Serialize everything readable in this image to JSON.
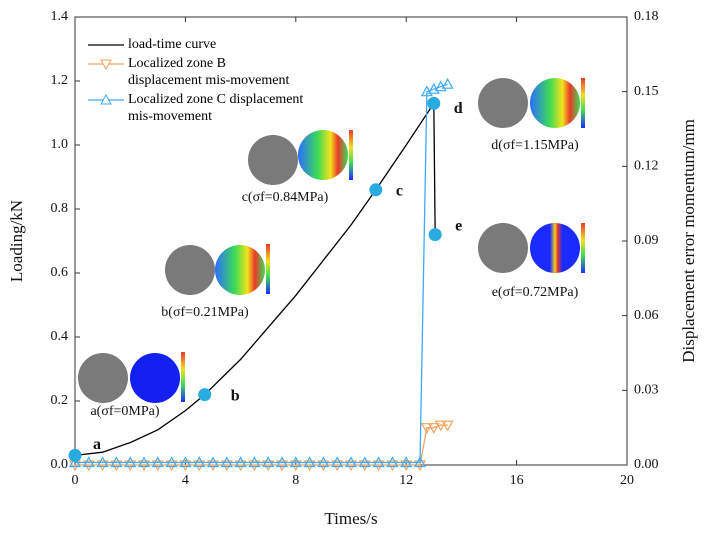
{
  "chart_data": {
    "type": "line",
    "xlabel": "Times/s",
    "ylabel": "Loading/kN",
    "y2label": "Displacement error momentum/mm",
    "xlim": [
      0,
      20
    ],
    "xticks": [
      0,
      4,
      8,
      12,
      16,
      20
    ],
    "ylim": [
      0,
      1.4
    ],
    "yticks": [
      {
        "value": 0,
        "label": "0.0"
      },
      0.2,
      0.4,
      0.6,
      0.8,
      {
        "value": 1,
        "label": "1.0"
      },
      1.2,
      1.4
    ],
    "y2lim": [
      0,
      0.18
    ],
    "y2ticks": [
      {
        "value": 0,
        "label": "0.00"
      },
      0.03,
      0.06,
      0.09,
      0.12,
      0.15,
      0.18
    ],
    "legend": "upper left",
    "series": [
      {
        "name": "load-time curve",
        "color": "#000000",
        "marker": "none",
        "axis": "y",
        "x": [
          0,
          1,
          2,
          3,
          4,
          4.7,
          6,
          8,
          10,
          10.9,
          12,
          13,
          13.05
        ],
        "values": [
          0.03,
          0.04,
          0.07,
          0.11,
          0.17,
          0.22,
          0.33,
          0.53,
          0.75,
          0.86,
          1.0,
          1.13,
          0.72
        ]
      },
      {
        "name": "Localized zone B\ndisplacement mis-movement",
        "color": "#f4a460",
        "marker": "triangle-down",
        "axis": "y2",
        "x": [
          0,
          0.5,
          1,
          1.5,
          2,
          2.5,
          3,
          3.5,
          4,
          4.5,
          5,
          5.5,
          6,
          6.5,
          7,
          7.5,
          8,
          8.5,
          9,
          9.5,
          10,
          10.5,
          11,
          11.5,
          12,
          12.5,
          12.75,
          13,
          13.25,
          13.5
        ],
        "values": [
          0,
          0,
          0,
          0,
          0,
          0,
          0,
          0,
          0,
          0,
          0,
          0,
          0,
          0,
          0,
          0,
          0,
          0,
          0,
          0,
          0,
          0,
          0,
          0,
          0,
          0,
          0.015,
          0.015,
          0.016,
          0.016
        ]
      },
      {
        "name": "Localized zone C displacement\nmis-movement",
        "color": "#3fa9f5",
        "marker": "triangle-up",
        "axis": "y2",
        "x": [
          0,
          0.5,
          1,
          1.5,
          2,
          2.5,
          3,
          3.5,
          4,
          4.5,
          5,
          5.5,
          6,
          6.5,
          7,
          7.5,
          8,
          8.5,
          9,
          9.5,
          10,
          10.5,
          11,
          11.5,
          12,
          12.5,
          12.75,
          13,
          13.25,
          13.5
        ],
        "values": [
          0.001,
          0.001,
          0.001,
          0.001,
          0.001,
          0.001,
          0.001,
          0.001,
          0.001,
          0.001,
          0.001,
          0.001,
          0.001,
          0.001,
          0.001,
          0.001,
          0.001,
          0.001,
          0.001,
          0.001,
          0.001,
          0.001,
          0.001,
          0.001,
          0.001,
          0.001,
          0.15,
          0.151,
          0.152,
          0.153
        ]
      }
    ],
    "key_points": {
      "color": "#29abe2",
      "x": [
        0,
        4.7,
        10.9,
        13,
        13.05
      ],
      "values": [
        0.03,
        0.22,
        0.86,
        1.13,
        0.72
      ],
      "labels": [
        "a",
        "b",
        "c",
        "d",
        "e"
      ],
      "annotations": [
        "a(σf=0MPa)",
        "b(σf=0.21MPa)",
        "c(σf=0.84MPa)",
        "d(σf=1.15MPa)",
        "e(σf=0.72MPa)"
      ]
    }
  }
}
